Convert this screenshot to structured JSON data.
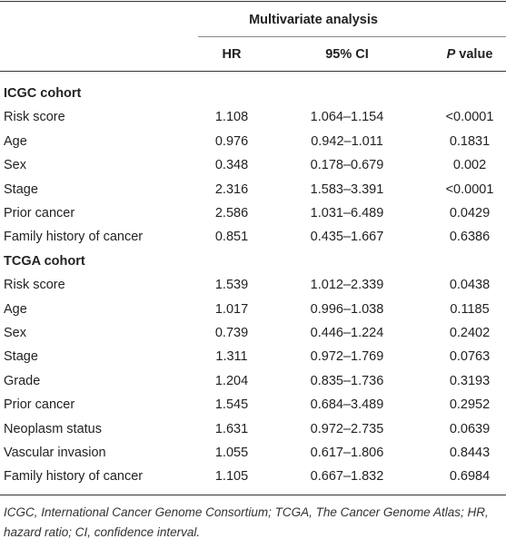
{
  "table": {
    "span_header": "Multivariate analysis",
    "columns": [
      "HR",
      "95% CI"
    ],
    "p_column": {
      "italic": "P",
      "rest": "value"
    },
    "groups": [
      {
        "title": "ICGC cohort",
        "rows": [
          [
            "Risk score",
            "1.108",
            "1.064–1.154",
            "<0.0001"
          ],
          [
            "Age",
            "0.976",
            "0.942–1.011",
            "0.1831"
          ],
          [
            "Sex",
            "0.348",
            "0.178–0.679",
            "0.002"
          ],
          [
            "Stage",
            "2.316",
            "1.583–3.391",
            "<0.0001"
          ],
          [
            "Prior cancer",
            "2.586",
            "1.031–6.489",
            "0.0429"
          ],
          [
            "Family history of cancer",
            "0.851",
            "0.435–1.667",
            "0.6386"
          ]
        ]
      },
      {
        "title": "TCGA cohort",
        "rows": [
          [
            "Risk score",
            "1.539",
            "1.012–2.339",
            "0.0438"
          ],
          [
            "Age",
            "1.017",
            "0.996–1.038",
            "0.1185"
          ],
          [
            "Sex",
            "0.739",
            "0.446–1.224",
            "0.2402"
          ],
          [
            "Stage",
            "1.311",
            "0.972–1.769",
            "0.0763"
          ],
          [
            "Grade",
            "1.204",
            "0.835–1.736",
            "0.3193"
          ],
          [
            "Prior cancer",
            "1.545",
            "0.684–3.489",
            "0.2952"
          ],
          [
            "Neoplasm status",
            "1.631",
            "0.972–2.735",
            "0.0639"
          ],
          [
            "Vascular invasion",
            "1.055",
            "0.617–1.806",
            "0.8443"
          ],
          [
            "Family history of cancer",
            "1.105",
            "0.667–1.832",
            "0.6984"
          ]
        ]
      }
    ]
  },
  "footnote": "ICGC, International Cancer Genome Consortium; TCGA, The Cancer Genome Atlas; HR, hazard ratio; CI, confidence interval."
}
